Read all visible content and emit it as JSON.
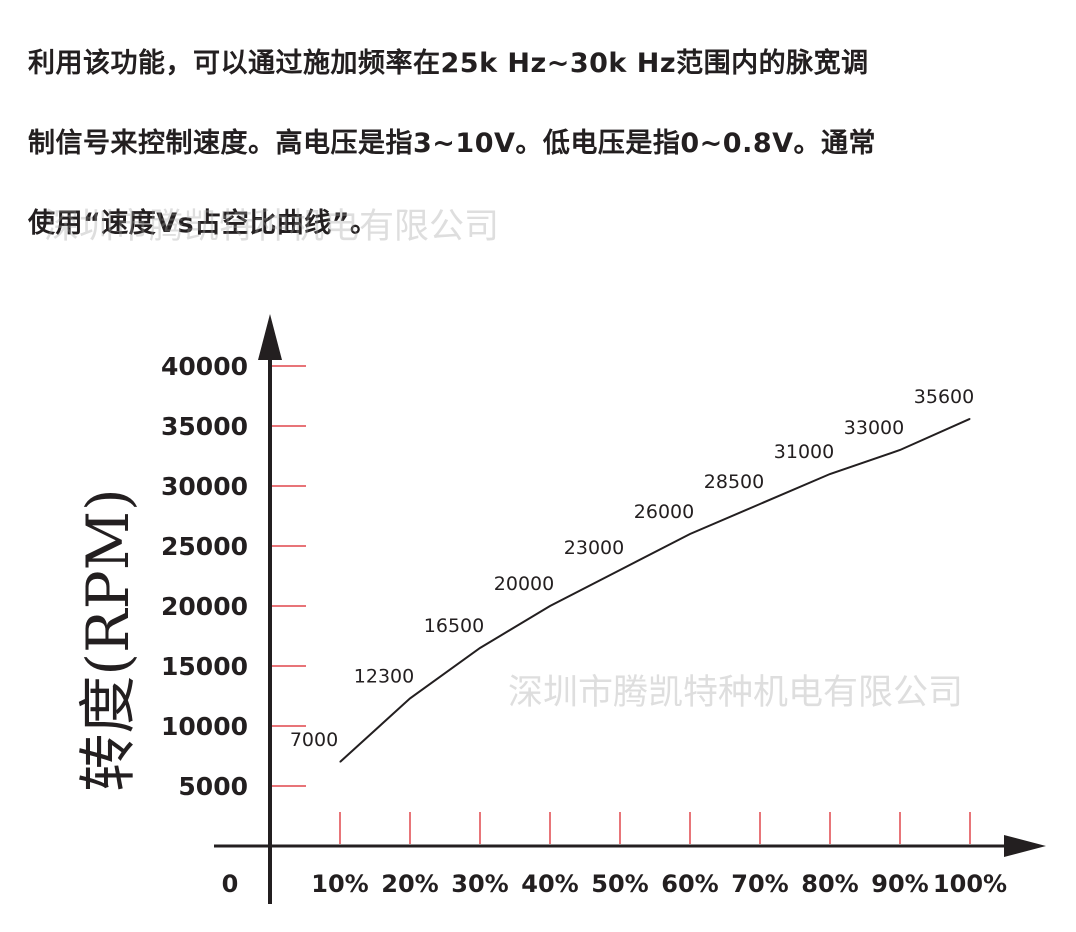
{
  "intro": {
    "line1": "利用该功能，可以通过施加频率在25k Hz~30k Hz范围内的脉宽调",
    "line2": "制信号来控制速度。高电压是指3~10V。低电压是指0~0.8V。通常",
    "line3": "使用“速度Vs占空比曲线”。"
  },
  "watermarks": {
    "top": "深圳市腾凯特种机电有限公司",
    "middle": "深圳市腾凯特种机电有限公司"
  },
  "colors": {
    "axis": "#231f20",
    "tick_marks": "#e0474c",
    "line": "#231f20"
  },
  "chart_data": {
    "type": "line",
    "title": "",
    "xlabel": "",
    "ylabel": "转度(RPM)",
    "origin_label": "0",
    "categories": [
      "10%",
      "20%",
      "30%",
      "40%",
      "50%",
      "60%",
      "70%",
      "80%",
      "90%",
      "100%"
    ],
    "y_ticks": [
      "5000",
      "10000",
      "15000",
      "20000",
      "25000",
      "30000",
      "35000",
      "40000"
    ],
    "ylim": [
      0,
      40000
    ],
    "series": [
      {
        "points": [
          {
            "x": 10,
            "y": 7000,
            "label": "7000"
          },
          {
            "x": 20,
            "y": 12300,
            "label": "12300"
          },
          {
            "x": 30,
            "y": 16500,
            "label": "16500"
          },
          {
            "x": 40,
            "y": 20000,
            "label": "20000"
          },
          {
            "x": 50,
            "y": 23000,
            "label": "23000"
          },
          {
            "x": 60,
            "y": 26000,
            "label": "26000"
          },
          {
            "x": 70,
            "y": 28500,
            "label": "28500"
          },
          {
            "x": 80,
            "y": 31000,
            "label": "31000"
          },
          {
            "x": 90,
            "y": 33000,
            "label": "33000"
          },
          {
            "x": 100,
            "y": 35600,
            "label": "35600"
          }
        ]
      }
    ],
    "grid": false,
    "legend": "none"
  }
}
